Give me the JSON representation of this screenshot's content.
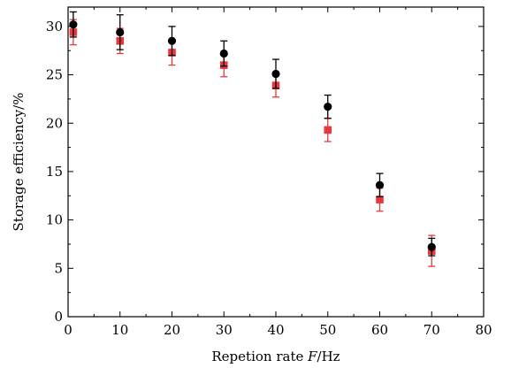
{
  "chart_data": {
    "type": "scatter",
    "xlabel": {
      "prefix": "Repetion rate ",
      "variable": "F",
      "suffix": "/Hz"
    },
    "ylabel": "Storage efficiency/%",
    "xlim": [
      0,
      80
    ],
    "ylim": [
      0,
      32
    ],
    "xticks": [
      "0",
      "10",
      "20",
      "30",
      "40",
      "50",
      "60",
      "70",
      "80"
    ],
    "yticks": [
      "0",
      "5",
      "10",
      "15",
      "20",
      "25",
      "30"
    ],
    "grid": false,
    "legend": "none",
    "series": [
      {
        "color": "#000000",
        "marker": "circle",
        "points": [
          {
            "x": 1,
            "y": 30.2,
            "err": 1.3
          },
          {
            "x": 10,
            "y": 29.4,
            "err": 1.8
          },
          {
            "x": 20,
            "y": 28.5,
            "err": 1.5
          },
          {
            "x": 30,
            "y": 27.2,
            "err": 1.3
          },
          {
            "x": 40,
            "y": 25.1,
            "err": 1.5
          },
          {
            "x": 50,
            "y": 21.7,
            "err": 1.2
          },
          {
            "x": 60,
            "y": 13.6,
            "err": 1.2
          },
          {
            "x": 70,
            "y": 7.2,
            "err": 0.9
          }
        ]
      },
      {
        "color": "#e8383b",
        "marker": "square",
        "points": [
          {
            "x": 1,
            "y": 29.4,
            "err": 1.3
          },
          {
            "x": 10,
            "y": 28.5,
            "err": 1.3
          },
          {
            "x": 20,
            "y": 27.3,
            "err": 1.3
          },
          {
            "x": 30,
            "y": 26.0,
            "err": 1.2
          },
          {
            "x": 40,
            "y": 23.9,
            "err": 1.2
          },
          {
            "x": 50,
            "y": 19.3,
            "err": 1.2
          },
          {
            "x": 60,
            "y": 12.1,
            "err": 1.2
          },
          {
            "x": 70,
            "y": 6.8,
            "err": 1.6
          }
        ]
      }
    ]
  }
}
